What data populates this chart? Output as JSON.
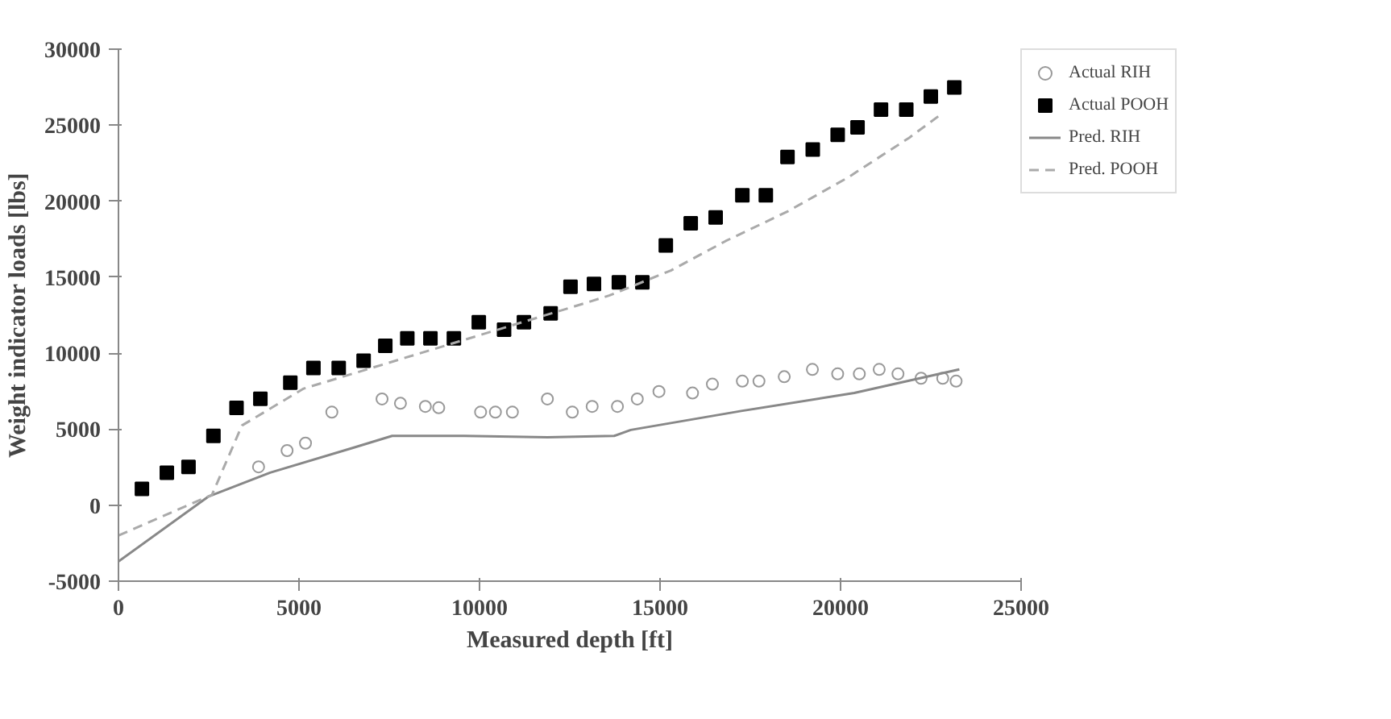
{
  "chart_data": {
    "type": "scatter",
    "xlabel": "Measured depth [ft]",
    "ylabel": "Weight indicator loads [lbs]",
    "xlim": [
      0,
      25000
    ],
    "ylim": [
      -5000,
      30000
    ],
    "xticks": [
      0,
      5000,
      10000,
      15000,
      20000,
      25000
    ],
    "yticks": [
      -5000,
      0,
      5000,
      10000,
      15000,
      20000,
      25000,
      30000
    ],
    "grid": false,
    "legend": "right",
    "series": [
      {
        "name": "Actual RIH",
        "marker": "circle",
        "color": "#999999",
        "x": [
          3880,
          4670,
          5180,
          5910,
          7300,
          7810,
          8500,
          8870,
          10030,
          10440,
          10910,
          11880,
          12570,
          13120,
          13820,
          14370,
          14970,
          15900,
          16450,
          17280,
          17740,
          18440,
          19220,
          19920,
          20520,
          21070,
          21590,
          22230,
          22830,
          23200
        ],
        "values": [
          2520,
          3590,
          4080,
          6120,
          6990,
          6700,
          6500,
          6410,
          6120,
          6120,
          6120,
          6990,
          6120,
          6500,
          6500,
          6990,
          7480,
          7380,
          7960,
          8160,
          8160,
          8450,
          8930,
          8640,
          8640,
          8930,
          8640,
          8350,
          8350,
          8160
        ]
      },
      {
        "name": "Actual POOH",
        "marker": "square",
        "color": "#000000",
        "x": [
          650,
          1340,
          1940,
          2630,
          3270,
          3930,
          4760,
          5400,
          6100,
          6790,
          7390,
          8000,
          8640,
          9290,
          9980,
          10680,
          11230,
          11970,
          12520,
          13170,
          13860,
          14510,
          15160,
          15850,
          16540,
          17280,
          17930,
          18530,
          19230,
          19920,
          20470,
          21120,
          21820,
          22500,
          23150
        ],
        "values": [
          1070,
          2130,
          2520,
          4560,
          6400,
          7000,
          8060,
          9030,
          9030,
          9500,
          10490,
          10970,
          10970,
          10970,
          12040,
          11550,
          12040,
          12620,
          14370,
          14560,
          14660,
          14660,
          17090,
          18540,
          18930,
          20390,
          20390,
          22910,
          23400,
          24370,
          24850,
          26020,
          26020,
          26890,
          27480
        ]
      },
      {
        "name": "Pred. RIH",
        "type": "line",
        "line_style": "solid",
        "color": "#888888",
        "x": [
          0,
          2500,
          4200,
          6520,
          7580,
          9570,
          11880,
          13730,
          14190,
          17280,
          20380,
          23290
        ],
        "values": [
          -3700,
          580,
          2140,
          3790,
          4560,
          4560,
          4460,
          4560,
          4950,
          6210,
          7380,
          8930
        ]
      },
      {
        "name": "Pred. POOH",
        "type": "line",
        "line_style": "dashed",
        "color": "#aaaaaa",
        "x": [
          0,
          2590,
          3420,
          5130,
          12800,
          13590,
          15300,
          16820,
          18530,
          20200,
          21900,
          22830
        ],
        "values": [
          -2000,
          680,
          5240,
          7670,
          13200,
          13790,
          15440,
          17380,
          19320,
          21550,
          24170,
          25800
        ]
      }
    ]
  }
}
